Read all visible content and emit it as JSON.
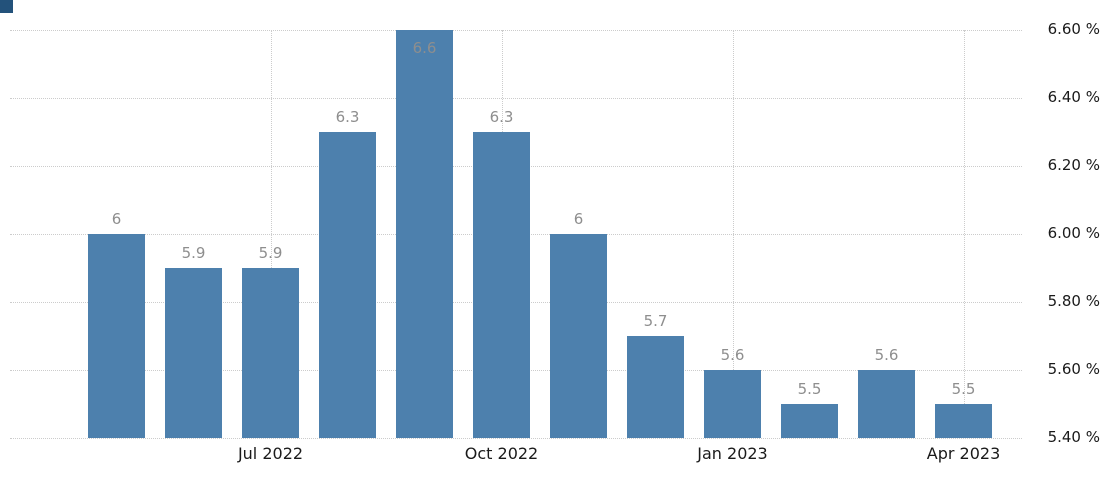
{
  "chart": {
    "background": "#ffffff",
    "bar_color": "#4d80ad",
    "value_label_color": "#8e8e8e",
    "axis_label_color": "#1a1a1a",
    "gridline_color": "#cccccc",
    "accent_square_color": "#23527b"
  },
  "chart_data": {
    "type": "bar",
    "title": "",
    "xlabel": "",
    "ylabel": "",
    "values": [
      6,
      5.9,
      5.9,
      6.3,
      6.6,
      6.3,
      6,
      5.7,
      5.6,
      5.5,
      5.6,
      5.5
    ],
    "value_labels": [
      "6",
      "5.9",
      "5.9",
      "6.3",
      "6.6",
      "6.3",
      "6",
      "5.7",
      "5.6",
      "5.5",
      "5.6",
      "5.5"
    ],
    "x_ticks": [
      {
        "label": "Jul 2022",
        "bar_index": 2
      },
      {
        "label": "Oct 2022",
        "bar_index": 5
      },
      {
        "label": "Jan 2023",
        "bar_index": 8
      },
      {
        "label": "Apr 2023",
        "bar_index": 11
      }
    ],
    "y_ticks": [
      "6.60 %",
      "6.40 %",
      "6.20 %",
      "6.00 %",
      "5.80 %",
      "5.60 %",
      "5.40 %"
    ],
    "ylim": [
      5.4,
      6.6
    ],
    "grid": "dotted",
    "legend": "none"
  }
}
